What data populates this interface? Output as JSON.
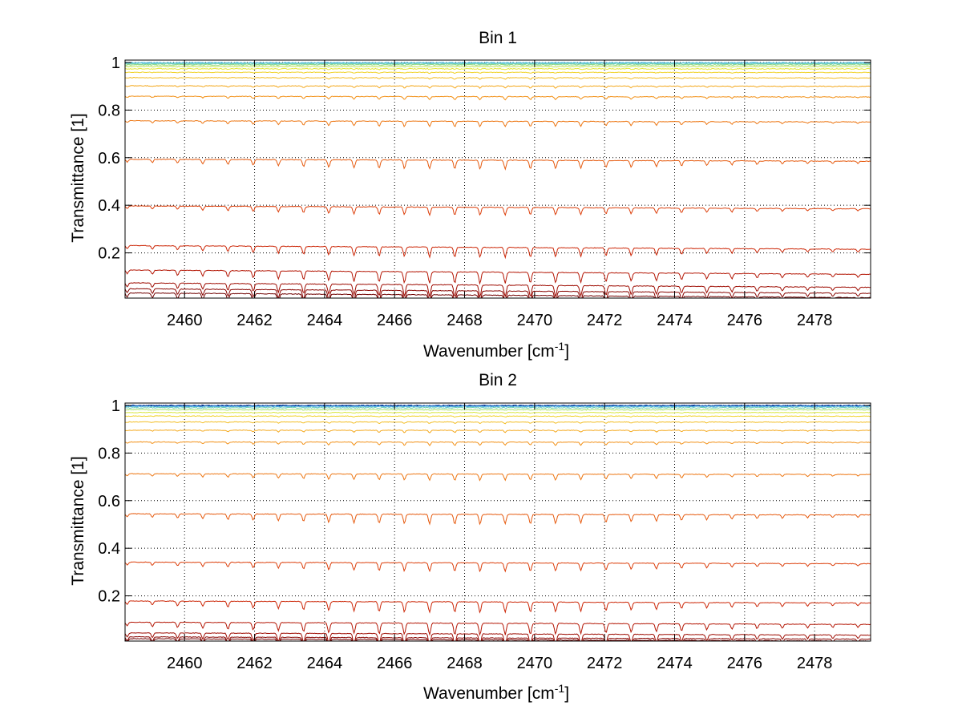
{
  "chart_data": [
    {
      "type": "line",
      "title": "Bin 1",
      "xlabel": "Wavenumber [cm",
      "xlabel_superscript": "-1",
      "xlabel_suffix": "]",
      "ylabel": "Transmittance [1]",
      "xlim": [
        2458.3,
        2479.6
      ],
      "ylim": [
        0.01,
        1.01
      ],
      "xticks": [
        2460,
        2462,
        2464,
        2466,
        2468,
        2470,
        2472,
        2474,
        2476,
        2478
      ],
      "yticks": [
        0.2,
        0.4,
        0.6,
        0.8,
        1
      ],
      "ytick_labels": [
        "0.2",
        "0.4",
        "0.6",
        "0.8",
        "1"
      ],
      "grid": "dotted",
      "series_colors": [
        "#4fb8e6",
        "#58c4d6",
        "#72d0b4",
        "#98dc86",
        "#c0e45a",
        "#e6e636",
        "#f0d228",
        "#f3bd22",
        "#f4a81c",
        "#f29016",
        "#ed7612",
        "#e65a0e",
        "#dc3e0a",
        "#cc2606",
        "#b41604",
        "#9e0c02",
        "#880400",
        "#700000"
      ],
      "series_levels": [
        0.999,
        0.997,
        0.994,
        0.99,
        0.983,
        0.973,
        0.958,
        0.935,
        0.9,
        0.855,
        0.75,
        0.585,
        0.385,
        0.215,
        0.11,
        0.055,
        0.03,
        0.012
      ]
    },
    {
      "type": "line",
      "title": "Bin 2",
      "xlabel": "Wavenumber [cm",
      "xlabel_superscript": "-1",
      "xlabel_suffix": "]",
      "ylabel": "Transmittance [1]",
      "xlim": [
        2458.3,
        2479.6
      ],
      "ylim": [
        0.01,
        1.01
      ],
      "xticks": [
        2460,
        2462,
        2464,
        2466,
        2468,
        2470,
        2472,
        2474,
        2476,
        2478
      ],
      "yticks": [
        0.2,
        0.4,
        0.6,
        0.8,
        1
      ],
      "ytick_labels": [
        "0.2",
        "0.4",
        "0.6",
        "0.8",
        "1"
      ],
      "grid": "dotted",
      "series_colors": [
        "#00207a",
        "#1a6cc8",
        "#4fb8e6",
        "#72d0b4",
        "#a8e070",
        "#d8e640",
        "#f0d228",
        "#f3bd22",
        "#f4a81c",
        "#f29016",
        "#ed7612",
        "#e65a0e",
        "#dc3e0a",
        "#cc2606",
        "#b41604",
        "#9e0c02",
        "#880400",
        "#700000"
      ],
      "series_levels": [
        1.0,
        0.998,
        0.995,
        0.99,
        0.982,
        0.97,
        0.955,
        0.93,
        0.895,
        0.845,
        0.71,
        0.54,
        0.335,
        0.17,
        0.08,
        0.035,
        0.018,
        0.01
      ]
    }
  ]
}
